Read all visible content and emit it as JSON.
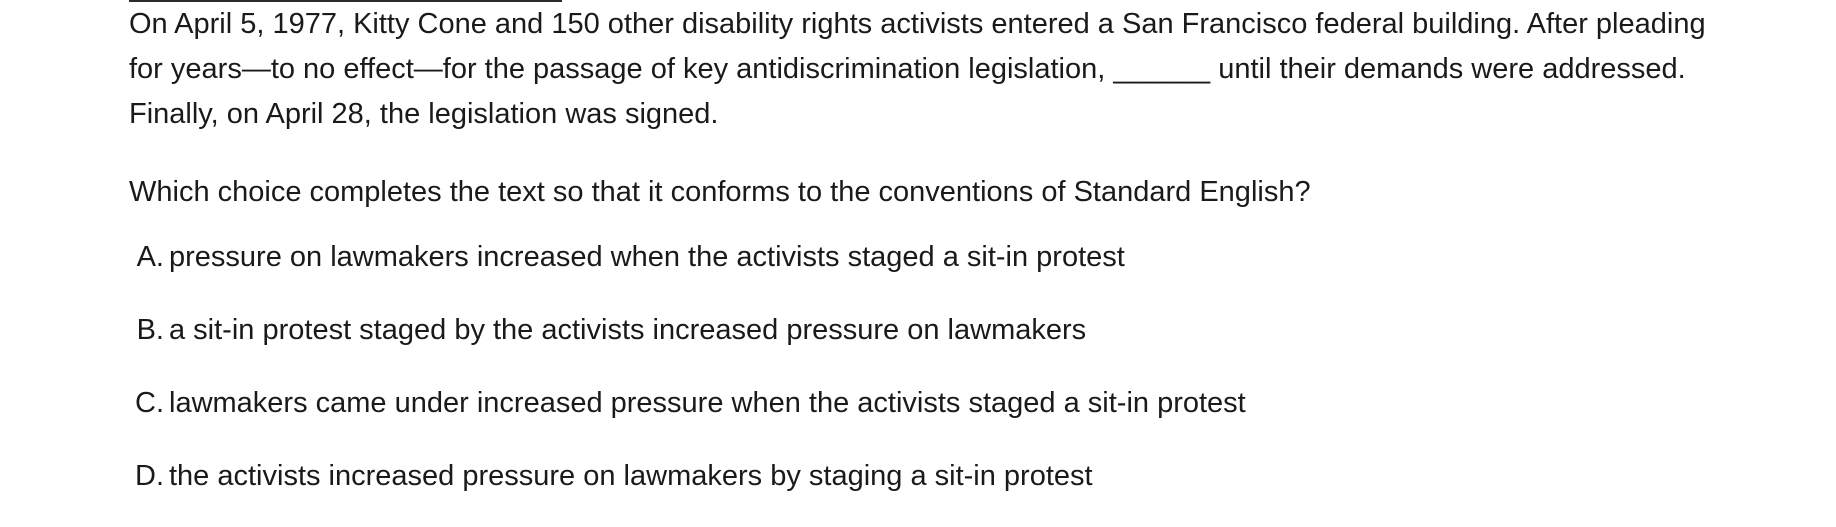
{
  "passage": {
    "before_blank": "On April 5, 1977, Kitty Cone and 150 other disability rights activists entered a San Francisco federal building. After pleading for years—to no effect—for the passage of key antidiscrimination legislation, ",
    "blank": "______",
    "after_blank": " until their demands were addressed. Finally, on April 28, the legislation was signed."
  },
  "question": "Which choice completes the text so that it conforms to the conventions of Standard English?",
  "choices": [
    {
      "letter": "A.",
      "text": "pressure on lawmakers increased when the activists staged a sit-in protest"
    },
    {
      "letter": "B.",
      "text": "a sit-in protest staged by the activists increased pressure on lawmakers"
    },
    {
      "letter": "C.",
      "text": "lawmakers came under increased pressure when the activists staged a sit-in protest"
    },
    {
      "letter": "D.",
      "text": "the activists increased pressure on lawmakers by staging a sit-in protest"
    }
  ]
}
